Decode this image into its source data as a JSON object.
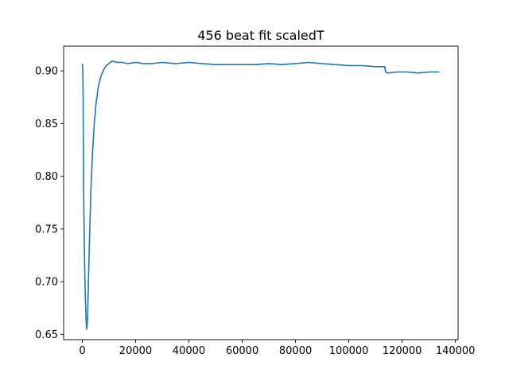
{
  "chart_data": {
    "type": "line",
    "title": "456 beat fit scaledT",
    "xlabel": "",
    "ylabel": "",
    "xlim": [
      -7000,
      141000
    ],
    "ylim": [
      0.645,
      0.9235
    ],
    "x_ticks": [
      0,
      20000,
      40000,
      60000,
      80000,
      100000,
      120000,
      140000
    ],
    "x_tick_labels": [
      "0",
      "20000",
      "40000",
      "60000",
      "80000",
      "100000",
      "120000",
      "140000"
    ],
    "y_ticks": [
      0.65,
      0.7,
      0.75,
      0.8,
      0.85,
      0.9
    ],
    "y_tick_labels": [
      "0.65",
      "0.70",
      "0.75",
      "0.80",
      "0.85",
      "0.90"
    ],
    "grid": false,
    "legend": "none",
    "colors": {
      "line": "#1f77b4",
      "axes": "#000000",
      "background": "#ffffff"
    },
    "series": [
      {
        "x": [
          0,
          150,
          300,
          500,
          800,
          1100,
          1400,
          1600,
          1800,
          2000,
          2300,
          2700,
          3200,
          3800,
          4500,
          5200,
          6000,
          7000,
          8000,
          9000,
          10000,
          11000,
          12000,
          13000,
          14000,
          15000,
          17000,
          20000,
          23000,
          26000,
          30000,
          35000,
          40000,
          45000,
          50000,
          55000,
          60000,
          65000,
          70000,
          75000,
          80000,
          85000,
          90000,
          95000,
          100000,
          105000,
          110000,
          113500,
          113800,
          114500,
          118000,
          122000,
          126000,
          130000,
          134000
        ],
        "y": [
          0.907,
          0.903,
          0.88,
          0.79,
          0.73,
          0.69,
          0.665,
          0.655,
          0.658,
          0.668,
          0.7,
          0.74,
          0.785,
          0.82,
          0.85,
          0.87,
          0.885,
          0.895,
          0.901,
          0.905,
          0.907,
          0.909,
          0.909,
          0.908,
          0.908,
          0.908,
          0.907,
          0.908,
          0.907,
          0.907,
          0.908,
          0.907,
          0.908,
          0.907,
          0.906,
          0.906,
          0.906,
          0.906,
          0.907,
          0.906,
          0.907,
          0.908,
          0.907,
          0.906,
          0.905,
          0.905,
          0.904,
          0.904,
          0.899,
          0.898,
          0.899,
          0.899,
          0.898,
          0.899,
          0.899
        ]
      }
    ]
  }
}
